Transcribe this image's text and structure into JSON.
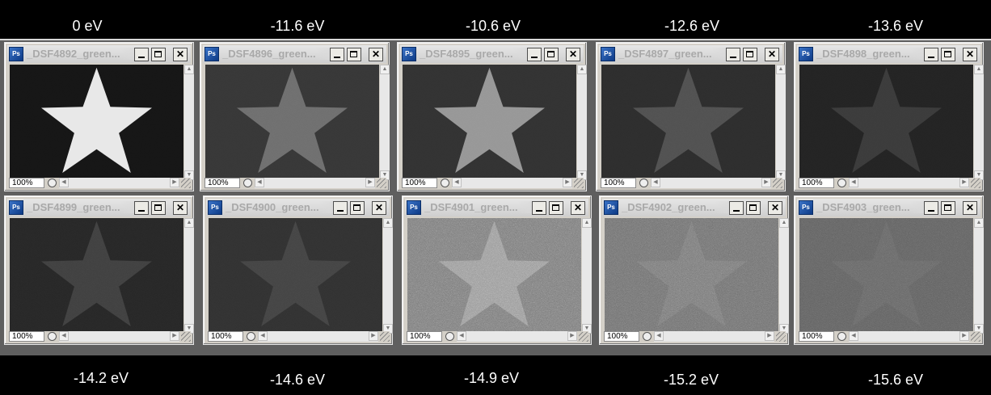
{
  "top_labels": [
    "0 eV",
    "-11.6 eV",
    "-10.6 eV",
    "-12.6 eV",
    "-13.6 eV"
  ],
  "bottom_labels": [
    "-14.2 eV",
    "-14.6 eV",
    "-14.9 eV",
    "-15.2 eV",
    "-15.6 eV"
  ],
  "windows": [
    {
      "title": "_DSF4892_green...",
      "zoom": "100%"
    },
    {
      "title": "_DSF4896_green...",
      "zoom": "100%"
    },
    {
      "title": "_DSF4895_green...",
      "zoom": "100%"
    },
    {
      "title": "_DSF4897_green...",
      "zoom": "100%"
    },
    {
      "title": "_DSF4898_green...",
      "zoom": "100%"
    },
    {
      "title": "_DSF4899_green...",
      "zoom": "100%"
    },
    {
      "title": "_DSF4900_green...",
      "zoom": "100%"
    },
    {
      "title": "_DSF4901_green...",
      "zoom": "100%"
    },
    {
      "title": "_DSF4902_green...",
      "zoom": "100%"
    },
    {
      "title": "_DSF4903_green...",
      "zoom": "100%"
    }
  ],
  "icons": {
    "app": "photoshop-icon",
    "minimize": "minimize-icon",
    "maximize": "maximize-icon",
    "close": "close-icon"
  },
  "colors": {
    "background": "#000000",
    "label_text": "#ffffff",
    "window_chrome": "#d4d0c8",
    "title_text_inactive": "#a9a9a9"
  }
}
